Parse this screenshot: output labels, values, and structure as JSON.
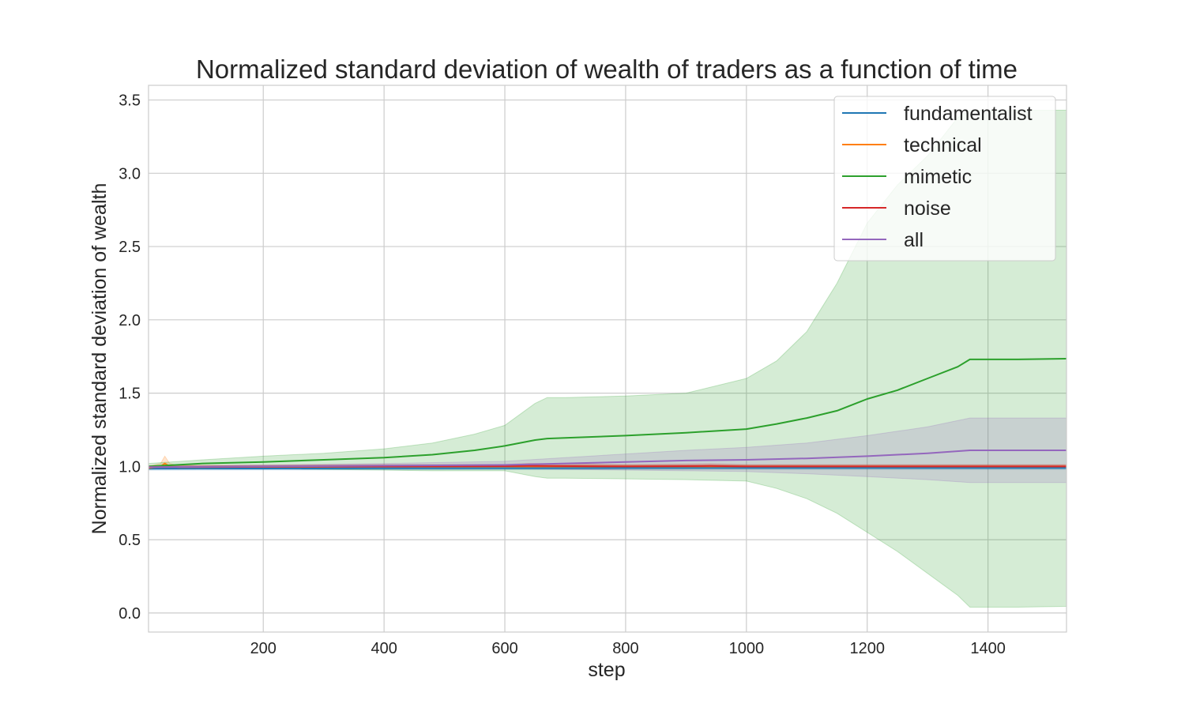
{
  "chart_data": {
    "type": "line",
    "title": "Normalized standard deviation of wealth of traders as a function of time",
    "xlabel": "step",
    "ylabel": "Normalized standard deviation of wealth",
    "xlim": [
      10,
      1530
    ],
    "ylim": [
      -0.13,
      3.6
    ],
    "xticks": [
      200,
      400,
      600,
      800,
      1000,
      1200,
      1400
    ],
    "xtick_labels": [
      "200",
      "400",
      "600",
      "800",
      "1000",
      "1200",
      "1400"
    ],
    "yticks": [
      0.0,
      0.5,
      1.0,
      1.5,
      2.0,
      2.5,
      3.0,
      3.5
    ],
    "ytick_labels": [
      "0.0",
      "0.5",
      "1.0",
      "1.5",
      "2.0",
      "2.5",
      "3.0",
      "3.5"
    ],
    "grid": true,
    "legend_position": "top-right",
    "series": [
      {
        "name": "fundamentalist",
        "color": "#1f77b4",
        "x": [
          10,
          200,
          400,
          600,
          800,
          1000,
          1200,
          1400,
          1530
        ],
        "y": [
          0.985,
          0.986,
          0.987,
          0.988,
          0.989,
          0.99,
          0.99,
          0.99,
          0.99
        ],
        "lower": [
          0.975,
          0.976,
          0.977,
          0.978,
          0.979,
          0.98,
          0.98,
          0.98,
          0.98
        ],
        "upper": [
          0.995,
          0.996,
          0.997,
          0.998,
          0.999,
          1.0,
          1.0,
          1.0,
          1.0
        ]
      },
      {
        "name": "technical",
        "color": "#ff7f0e",
        "x": [
          10,
          30,
          37,
          45,
          60,
          200,
          400,
          600,
          800,
          1000,
          1200,
          1400,
          1530
        ],
        "y": [
          0.99,
          1.0,
          1.02,
          1.0,
          0.995,
          0.997,
          1.0,
          1.0,
          1.0,
          1.0,
          1.0,
          1.0,
          1.0
        ],
        "lower": [
          0.98,
          0.985,
          0.985,
          0.985,
          0.985,
          0.987,
          0.99,
          0.99,
          0.99,
          0.99,
          0.99,
          0.99,
          0.99
        ],
        "upper": [
          1.0,
          1.02,
          1.07,
          1.02,
          1.005,
          1.007,
          1.01,
          1.01,
          1.01,
          1.01,
          1.01,
          1.01,
          1.01
        ]
      },
      {
        "name": "mimetic",
        "color": "#2ca02c",
        "x": [
          10,
          100,
          200,
          300,
          400,
          480,
          550,
          600,
          650,
          670,
          700,
          800,
          900,
          1000,
          1050,
          1100,
          1150,
          1200,
          1250,
          1300,
          1350,
          1370,
          1400,
          1450,
          1530
        ],
        "y": [
          1.0,
          1.02,
          1.03,
          1.045,
          1.06,
          1.08,
          1.11,
          1.14,
          1.18,
          1.19,
          1.195,
          1.21,
          1.23,
          1.255,
          1.29,
          1.33,
          1.38,
          1.46,
          1.52,
          1.6,
          1.68,
          1.73,
          1.73,
          1.73,
          1.735
        ],
        "lower": [
          0.99,
          0.99,
          0.985,
          0.98,
          0.975,
          0.97,
          0.97,
          0.97,
          0.93,
          0.92,
          0.92,
          0.915,
          0.91,
          0.9,
          0.85,
          0.78,
          0.68,
          0.55,
          0.42,
          0.27,
          0.12,
          0.04,
          0.04,
          0.04,
          0.045
        ],
        "upper": [
          1.02,
          1.045,
          1.07,
          1.09,
          1.12,
          1.16,
          1.22,
          1.28,
          1.43,
          1.47,
          1.47,
          1.48,
          1.5,
          1.6,
          1.72,
          1.92,
          2.25,
          2.66,
          2.92,
          3.12,
          3.38,
          3.43,
          3.43,
          3.43,
          3.43
        ]
      },
      {
        "name": "noise",
        "color": "#d62728",
        "x": [
          10,
          200,
          400,
          600,
          640,
          800,
          940,
          1000,
          1200,
          1400,
          1530
        ],
        "y": [
          0.995,
          0.998,
          1.0,
          1.002,
          1.004,
          1.0,
          1.003,
          1.0,
          1.0,
          1.0,
          1.0
        ],
        "lower": [
          0.985,
          0.988,
          0.99,
          0.99,
          0.99,
          0.99,
          0.99,
          0.99,
          0.99,
          0.99,
          0.99
        ],
        "upper": [
          1.005,
          1.008,
          1.012,
          1.013,
          1.02,
          1.012,
          1.018,
          1.012,
          1.012,
          1.012,
          1.012
        ]
      },
      {
        "name": "all",
        "color": "#9467bd",
        "x": [
          10,
          200,
          400,
          600,
          700,
          800,
          900,
          1000,
          1100,
          1200,
          1300,
          1370,
          1400,
          1530
        ],
        "y": [
          0.995,
          1.0,
          1.005,
          1.01,
          1.02,
          1.03,
          1.04,
          1.045,
          1.055,
          1.07,
          1.09,
          1.11,
          1.11,
          1.11
        ],
        "lower": [
          0.99,
          0.99,
          0.99,
          0.985,
          0.98,
          0.975,
          0.97,
          0.965,
          0.95,
          0.93,
          0.91,
          0.89,
          0.89,
          0.89
        ],
        "upper": [
          1.0,
          1.01,
          1.02,
          1.035,
          1.06,
          1.085,
          1.11,
          1.13,
          1.16,
          1.21,
          1.27,
          1.33,
          1.33,
          1.33
        ]
      }
    ]
  }
}
